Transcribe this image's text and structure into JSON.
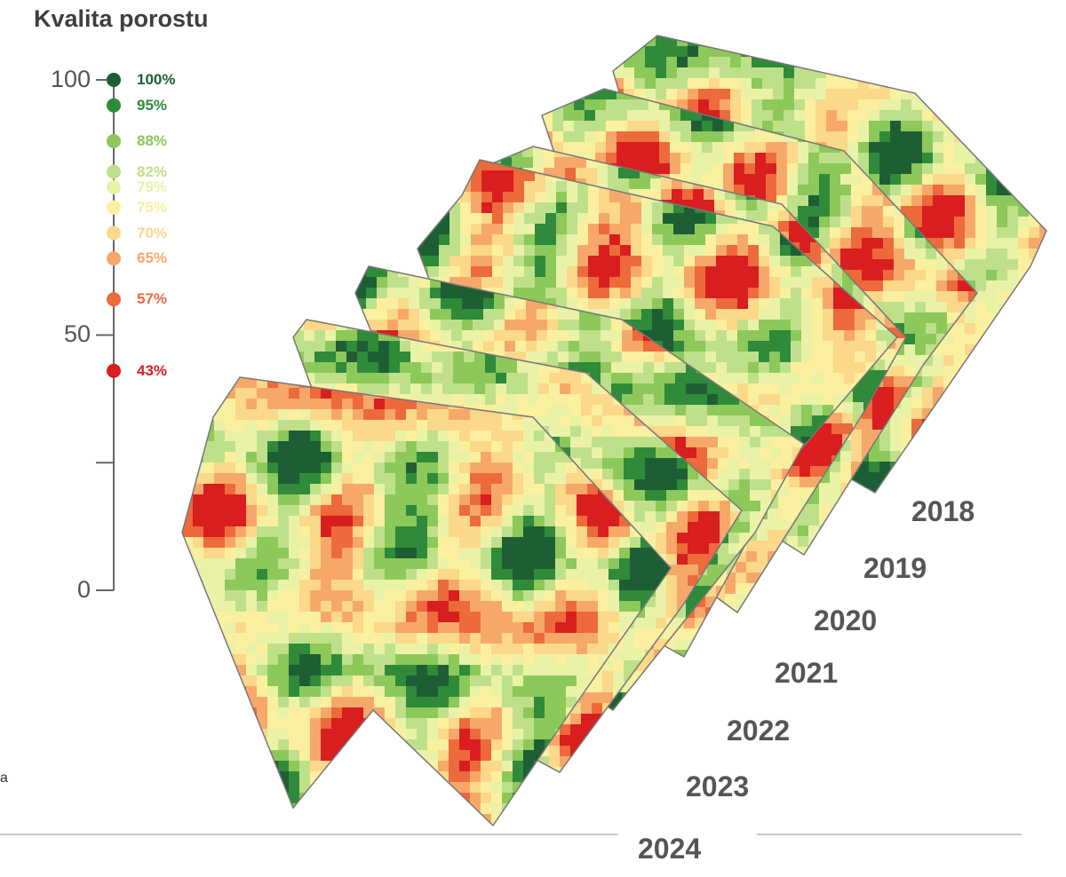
{
  "title": "Kvalita porostu",
  "scale": {
    "ticks": [
      "100",
      "50",
      "0"
    ],
    "levels": [
      {
        "label": "100%",
        "value": 100,
        "color": "#1e5e34"
      },
      {
        "label": "95%",
        "value": 95,
        "color": "#2f8a3a"
      },
      {
        "label": "88%",
        "value": 88,
        "color": "#8cc85a"
      },
      {
        "label": "82%",
        "value": 82,
        "color": "#bfe08a"
      },
      {
        "label": "79%",
        "value": 79,
        "color": "#eaf2a8"
      },
      {
        "label": "75%",
        "value": 75,
        "color": "#fbf0a0"
      },
      {
        "label": "70%",
        "value": 70,
        "color": "#fbd88a"
      },
      {
        "label": "65%",
        "value": 65,
        "color": "#f6a86a"
      },
      {
        "label": "57%",
        "value": 57,
        "color": "#ec6a3c"
      },
      {
        "label": "43%",
        "value": 43,
        "color": "#d81e1e"
      }
    ]
  },
  "years": [
    "2018",
    "2019",
    "2020",
    "2021",
    "2022",
    "2023",
    "2024"
  ],
  "side_fragment": "a"
}
